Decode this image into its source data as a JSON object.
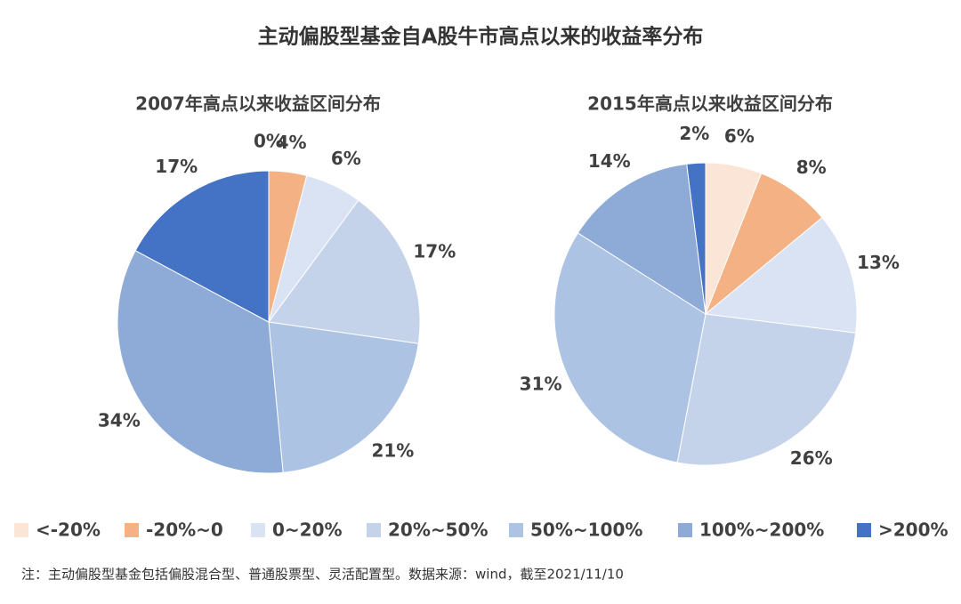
{
  "title": "主动偏股型基金自A股牛市高点以来的收益率分布",
  "note": "注：主动偏股型基金包括偏股混合型、普通股票型、灵活配置型。数据来源：wind，截至2021/11/10",
  "chart_data": [
    {
      "type": "pie",
      "title": "2007年高点以来收益区间分布",
      "categories": [
        "<-20%",
        "-20%~0",
        "0~20%",
        "20%~50%",
        "50%~100%",
        "100%~200%",
        ">200%"
      ],
      "values": [
        0,
        4,
        6,
        17,
        21,
        34,
        17
      ],
      "value_labels": [
        "0%",
        "4%",
        "6%",
        "17%",
        "21%",
        "34%",
        "17%"
      ],
      "colors": [
        "#fbe5d6",
        "#f4b183",
        "#dae3f3",
        "#c5d3ea",
        "#adc3e3",
        "#8eaad6",
        "#4472c4"
      ]
    },
    {
      "type": "pie",
      "title": "2015年高点以来收益区间分布",
      "categories": [
        "<-20%",
        "-20%~0",
        "0~20%",
        "20%~50%",
        "50%~100%",
        "100%~200%",
        ">200%"
      ],
      "values": [
        6,
        8,
        13,
        26,
        31,
        14,
        2
      ],
      "value_labels": [
        "6%",
        "8%",
        "13%",
        "26%",
        "31%",
        "14%",
        "2%"
      ],
      "colors": [
        "#fbe5d6",
        "#f4b183",
        "#dae3f3",
        "#c5d3ea",
        "#adc3e3",
        "#8eaad6",
        "#4472c4"
      ]
    }
  ]
}
